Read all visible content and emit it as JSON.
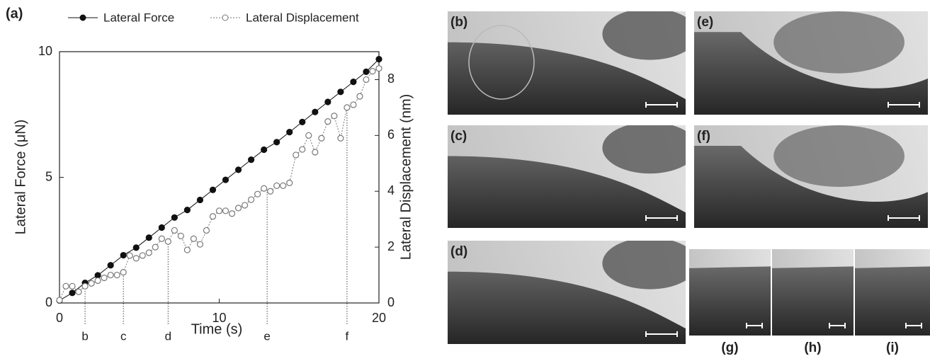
{
  "chart_data": {
    "type": "line",
    "panel_label": "(a)",
    "x_label": "Time (s)",
    "y_label": "Lateral Force (μN)",
    "y2_label": "Lateral Displacement (nm)",
    "xlim": [
      0,
      20
    ],
    "xticks": [
      0,
      10,
      20
    ],
    "ylim": [
      0,
      10
    ],
    "yticks": [
      0,
      5,
      10
    ],
    "y2lim": [
      0,
      9
    ],
    "y2ticks": [
      0,
      2,
      4,
      6,
      8
    ],
    "series": [
      {
        "name": "Lateral Force",
        "color": "#111111",
        "marker": "filled",
        "style": "solid",
        "x": [
          0,
          0.8,
          1.6,
          2.4,
          3.2,
          4.0,
          4.8,
          5.6,
          6.4,
          7.2,
          8.0,
          8.8,
          9.6,
          10.4,
          11.2,
          12.0,
          12.8,
          13.6,
          14.4,
          15.2,
          16.0,
          16.8,
          17.6,
          18.4,
          19.2,
          20.0
        ],
        "values": [
          0.1,
          0.4,
          0.8,
          1.1,
          1.5,
          1.9,
          2.2,
          2.6,
          3.0,
          3.4,
          3.7,
          4.1,
          4.5,
          4.9,
          5.3,
          5.7,
          6.1,
          6.4,
          6.8,
          7.2,
          7.6,
          8.0,
          8.4,
          8.8,
          9.2,
          9.7
        ]
      },
      {
        "name": "Lateral Displacement",
        "color": "#777777",
        "marker": "hollow",
        "style": "dotted",
        "axis": "y2",
        "x": [
          0,
          0.4,
          0.8,
          1.2,
          1.6,
          2.0,
          2.4,
          2.8,
          3.2,
          3.6,
          4.0,
          4.4,
          4.8,
          5.2,
          5.6,
          6.0,
          6.4,
          6.8,
          7.2,
          7.6,
          8.0,
          8.4,
          8.8,
          9.2,
          9.6,
          10.0,
          10.4,
          10.8,
          11.2,
          11.6,
          12.0,
          12.4,
          12.8,
          13.2,
          13.6,
          14.0,
          14.4,
          14.8,
          15.2,
          15.6,
          16.0,
          16.4,
          16.8,
          17.2,
          17.6,
          18.0,
          18.4,
          18.8,
          19.2,
          19.6,
          20.0
        ],
        "values": [
          0.1,
          0.6,
          0.6,
          0.4,
          0.6,
          0.7,
          0.8,
          0.9,
          1.0,
          1.0,
          1.1,
          1.7,
          1.6,
          1.7,
          1.8,
          2.0,
          2.3,
          2.2,
          2.6,
          2.4,
          1.9,
          2.3,
          2.1,
          2.6,
          3.1,
          3.3,
          3.3,
          3.2,
          3.4,
          3.5,
          3.7,
          3.9,
          4.1,
          4.0,
          4.2,
          4.2,
          4.3,
          5.3,
          5.5,
          6.0,
          5.4,
          5.9,
          6.5,
          6.7,
          5.9,
          7.0,
          7.1,
          7.4,
          8.0,
          8.3,
          8.4
        ]
      }
    ],
    "annotations": [
      {
        "label": "b",
        "x": 1.6
      },
      {
        "label": "c",
        "x": 4.0
      },
      {
        "label": "d",
        "x": 6.8
      },
      {
        "label": "e",
        "x": 13.0
      },
      {
        "label": "f",
        "x": 18.0
      }
    ]
  },
  "images": {
    "labels": [
      "(b)",
      "(e)",
      "(c)",
      "(f)",
      "(d)",
      "(g)",
      "(h)",
      "(i)"
    ]
  }
}
